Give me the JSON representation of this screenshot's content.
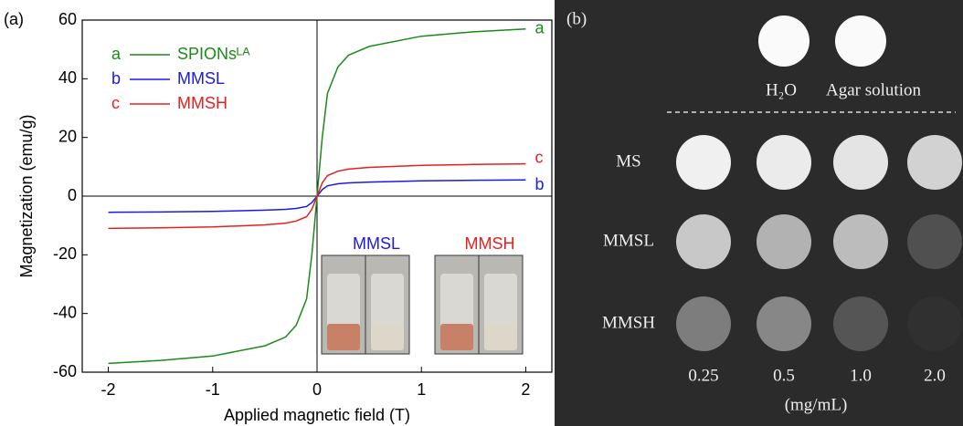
{
  "chart_data": {
    "type": "line",
    "panel_label": "(a)",
    "x_label": "Applied magnetic field (T)",
    "y_label": "Magnetization (emu/g)",
    "x": [
      -2,
      -1.5,
      -1,
      -0.5,
      -0.3,
      -0.2,
      -0.1,
      -0.05,
      0,
      0.05,
      0.1,
      0.2,
      0.3,
      0.5,
      1,
      1.5,
      2
    ],
    "series": [
      {
        "label": "a",
        "name": "SPIONsᴸᴬ",
        "color": "#1a8a1a",
        "values": [
          -57,
          -56,
          -54.5,
          -51,
          -48,
          -44,
          -35,
          -20,
          0,
          20,
          35,
          44,
          48,
          51,
          54.5,
          56,
          57
        ]
      },
      {
        "label": "b",
        "name": "MMSL",
        "color": "#1a1ae6",
        "values": [
          -5.5,
          -5.4,
          -5.2,
          -4.8,
          -4.5,
          -4.2,
          -3.5,
          -2.2,
          0,
          2.2,
          3.5,
          4.2,
          4.5,
          4.8,
          5.2,
          5.4,
          5.5
        ]
      },
      {
        "label": "c",
        "name": "MMSH",
        "color": "#e62020",
        "values": [
          -11,
          -10.8,
          -10.5,
          -9.8,
          -9.2,
          -8.5,
          -7,
          -4.5,
          0,
          4.5,
          7,
          8.5,
          9.2,
          9.8,
          10.5,
          10.8,
          11
        ]
      }
    ],
    "xlim": [
      -2.25,
      2.25
    ],
    "xticks": [
      -2,
      -1,
      0,
      1,
      2
    ],
    "ylim": [
      -60,
      60
    ],
    "yticks": [
      -60,
      -40,
      -20,
      0,
      20,
      40,
      60
    ],
    "inset_labels": [
      "MMSL",
      "MMSH"
    ]
  },
  "image_panel": {
    "panel_label": "(b)",
    "top_labels": [
      "H₂O",
      "Agar solution"
    ],
    "rows": [
      "MS",
      "MMSL",
      "MMSH"
    ],
    "columns": [
      "0.25",
      "0.5",
      "1.0",
      "2.0"
    ],
    "unit": "(mg/mL)"
  }
}
